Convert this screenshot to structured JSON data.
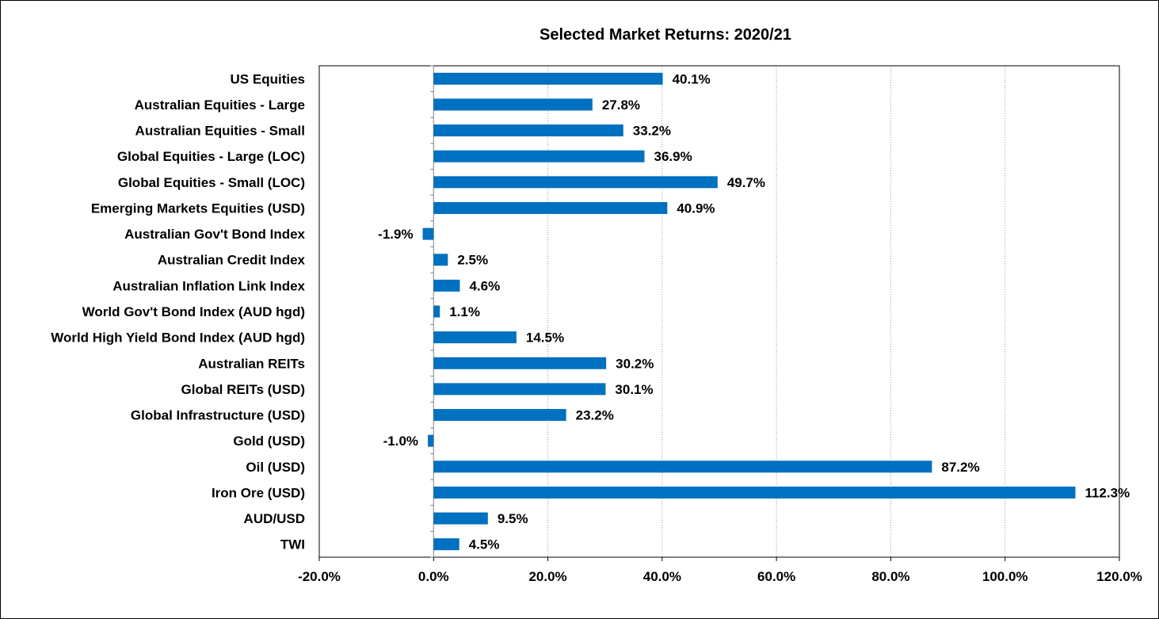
{
  "chart_data": {
    "type": "bar",
    "orientation": "horizontal",
    "title": "Selected Market Returns: 2020/21",
    "xlabel": "",
    "ylabel": "",
    "categories": [
      "US Equities",
      "Australian Equities - Large",
      "Australian Equities - Small",
      "Global Equities - Large (LOC)",
      "Global Equities - Small (LOC)",
      "Emerging Markets Equities (USD)",
      "Australian Gov't Bond Index",
      "Australian Credit Index",
      "Australian Inflation Link Index",
      "World Gov't Bond Index (AUD hgd)",
      "World High Yield Bond Index (AUD hgd)",
      "Australian REITs",
      "Global REITs (USD)",
      "Global Infrastructure (USD)",
      "Gold (USD)",
      "Oil (USD)",
      "Iron Ore (USD)",
      "AUD/USD",
      "TWI"
    ],
    "values": [
      40.1,
      27.8,
      33.2,
      36.9,
      49.7,
      40.9,
      -1.9,
      2.5,
      4.6,
      1.1,
      14.5,
      30.2,
      30.1,
      23.2,
      -1.0,
      87.2,
      112.3,
      9.5,
      4.5
    ],
    "data_labels": [
      "40.1%",
      "27.8%",
      "33.2%",
      "36.9%",
      "49.7%",
      "40.9%",
      "-1.9%",
      "2.5%",
      "4.6%",
      "1.1%",
      "14.5%",
      "30.2%",
      "30.1%",
      "23.2%",
      "-1.0%",
      "87.2%",
      "112.3%",
      "9.5%",
      "4.5%"
    ],
    "xlim": [
      -20,
      120
    ],
    "x_ticks": [
      -20,
      0,
      20,
      40,
      60,
      80,
      100,
      120
    ],
    "x_tick_labels": [
      "-20.0%",
      "0.0%",
      "20.0%",
      "40.0%",
      "60.0%",
      "80.0%",
      "100.0%",
      "120.0%"
    ],
    "gridlines": "vertical-dotted",
    "legend": "none",
    "bar_color": "#0070C0"
  }
}
